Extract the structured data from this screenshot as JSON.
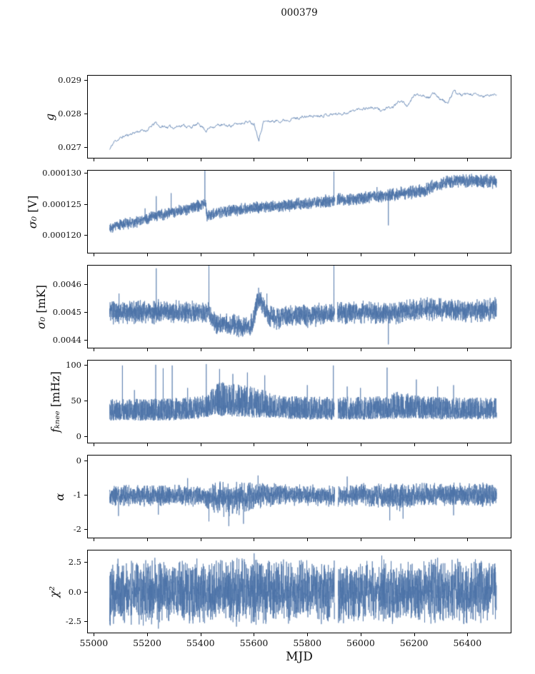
{
  "title": "000379",
  "xlabel": "MJD",
  "accent_color": "#4c73a8",
  "x_tick_labels": [
    "55000",
    "55200",
    "55400",
    "55600",
    "55800",
    "56000",
    "56200",
    "56400"
  ],
  "chart_data": {
    "type": "line",
    "title": "000379",
    "xlabel": "MJD",
    "xlim": [
      54975,
      56565
    ],
    "x_ticks": [
      55000,
      55200,
      55400,
      55600,
      55800,
      56000,
      56200,
      56400
    ],
    "legend": "none",
    "grid": false,
    "panels": [
      {
        "type": "line",
        "ylabel": {
          "sym": "g",
          "unit": ""
        },
        "ylabel_text": "g",
        "ylim": [
          0.02665,
          0.02915
        ],
        "yticks": [
          0.027,
          0.028,
          0.029
        ],
        "ytick_labels": [
          "0.027",
          "0.028",
          "0.029"
        ],
        "x_range": [
          55057,
          56512
        ],
        "sample_step": 1.5,
        "seed": 11,
        "noise": "ar1",
        "line_width": 0.8,
        "noise_amp": [
          [
            55057,
            6e-05
          ],
          [
            56512,
            6e-05
          ]
        ],
        "trend": [
          [
            55057,
            0.0269
          ],
          [
            55075,
            0.02715
          ],
          [
            55110,
            0.0273
          ],
          [
            55160,
            0.02745
          ],
          [
            55200,
            0.0275
          ],
          [
            55230,
            0.02772
          ],
          [
            55245,
            0.0276
          ],
          [
            55300,
            0.02758
          ],
          [
            55330,
            0.02765
          ],
          [
            55360,
            0.02758
          ],
          [
            55395,
            0.02768
          ],
          [
            55420,
            0.02748
          ],
          [
            55440,
            0.0276
          ],
          [
            55470,
            0.02765
          ],
          [
            55500,
            0.02762
          ],
          [
            55540,
            0.02768
          ],
          [
            55570,
            0.02776
          ],
          [
            55600,
            0.0277
          ],
          [
            55618,
            0.02722
          ],
          [
            55635,
            0.02775
          ],
          [
            55700,
            0.02778
          ],
          [
            55750,
            0.02785
          ],
          [
            55800,
            0.0279
          ],
          [
            55850,
            0.02795
          ],
          [
            55900,
            0.02798
          ],
          [
            55950,
            0.02802
          ],
          [
            56000,
            0.02815
          ],
          [
            56040,
            0.02818
          ],
          [
            56080,
            0.0281
          ],
          [
            56120,
            0.02818
          ],
          [
            56150,
            0.0284
          ],
          [
            56180,
            0.02822
          ],
          [
            56200,
            0.02855
          ],
          [
            56230,
            0.02858
          ],
          [
            56260,
            0.0285
          ],
          [
            56280,
            0.02862
          ],
          [
            56300,
            0.02845
          ],
          [
            56330,
            0.0283
          ],
          [
            56350,
            0.02868
          ],
          [
            56380,
            0.02855
          ],
          [
            56420,
            0.02858
          ],
          [
            56460,
            0.02852
          ],
          [
            56512,
            0.02858
          ]
        ],
        "spikes": [],
        "gaps": []
      },
      {
        "type": "line",
        "ylabel": {
          "sym": "σ₀",
          "unit": " [V]"
        },
        "ylabel_text": "σ₀ [V]",
        "ylim": [
          0.000117,
          0.0001305
        ],
        "yticks": [
          0.00012,
          0.000125,
          0.00013
        ],
        "ytick_labels": [
          "0.000120",
          "0.000125",
          "0.000130"
        ],
        "x_range": [
          55057,
          56512
        ],
        "sample_step": 0.4,
        "seed": 22,
        "noise": "sum2",
        "line_width": 0.7,
        "noise_amp": [
          [
            55057,
            7e-07
          ],
          [
            56200,
            8e-07
          ],
          [
            56512,
            9e-07
          ]
        ],
        "trend": [
          [
            55057,
            0.0001213
          ],
          [
            55100,
            0.0001217
          ],
          [
            55150,
            0.000122
          ],
          [
            55200,
            0.0001226
          ],
          [
            55250,
            0.0001233
          ],
          [
            55300,
            0.0001237
          ],
          [
            55350,
            0.0001242
          ],
          [
            55400,
            0.0001248
          ],
          [
            55418,
            0.0001252
          ],
          [
            55422,
            0.000123
          ],
          [
            55460,
            0.0001236
          ],
          [
            55520,
            0.000124
          ],
          [
            55600,
            0.0001244
          ],
          [
            55700,
            0.0001247
          ],
          [
            55800,
            0.0001251
          ],
          [
            55860,
            0.0001254
          ],
          [
            55920,
            0.0001257
          ],
          [
            55980,
            0.0001258
          ],
          [
            56040,
            0.0001262
          ],
          [
            56100,
            0.0001264
          ],
          [
            56160,
            0.0001268
          ],
          [
            56200,
            0.000127
          ],
          [
            56240,
            0.0001272
          ],
          [
            56280,
            0.000128
          ],
          [
            56320,
            0.0001286
          ],
          [
            56360,
            0.0001288
          ],
          [
            56420,
            0.0001289
          ],
          [
            56470,
            0.0001287
          ],
          [
            56512,
            0.0001288
          ]
        ],
        "spikes": [
          [
            55068,
            0.0001203
          ],
          [
            55190,
            0.0001243
          ],
          [
            55232,
            0.0001263
          ],
          [
            55288,
            0.0001268
          ],
          [
            55415,
            0.0001309
          ],
          [
            55900,
            0.0001304
          ],
          [
            56062,
            0.0001278
          ],
          [
            56105,
            0.0001215
          ]
        ],
        "gaps": [
          [
            55904,
            55912
          ]
        ]
      },
      {
        "type": "line",
        "ylabel": {
          "sym": "σ₀",
          "unit": " [mK]"
        },
        "ylabel_text": "σ₀ [mK]",
        "ylim": [
          0.00437,
          0.00467
        ],
        "yticks": [
          0.0044,
          0.0045,
          0.0046
        ],
        "ytick_labels": [
          "0.0044",
          "0.0045",
          "0.0046"
        ],
        "x_range": [
          55057,
          56512
        ],
        "sample_step": 0.4,
        "seed": 33,
        "noise": "sum2",
        "line_width": 0.7,
        "noise_amp": [
          [
            55057,
            3.2e-05
          ],
          [
            55440,
            3e-05
          ],
          [
            56512,
            3.2e-05
          ]
        ],
        "trend": [
          [
            55057,
            0.0045
          ],
          [
            55150,
            0.004498
          ],
          [
            55250,
            0.004502
          ],
          [
            55350,
            0.0045
          ],
          [
            55430,
            0.0045
          ],
          [
            55445,
            0.004462
          ],
          [
            55500,
            0.004452
          ],
          [
            55560,
            0.004448
          ],
          [
            55595,
            0.004455
          ],
          [
            55615,
            0.004548
          ],
          [
            55630,
            0.00453
          ],
          [
            55650,
            0.00449
          ],
          [
            55680,
            0.004478
          ],
          [
            55720,
            0.004488
          ],
          [
            55800,
            0.004488
          ],
          [
            55900,
            0.004495
          ],
          [
            56000,
            0.004498
          ],
          [
            56100,
            0.004495
          ],
          [
            56150,
            0.004502
          ],
          [
            56200,
            0.004505
          ],
          [
            56250,
            0.004512
          ],
          [
            56300,
            0.00451
          ],
          [
            56350,
            0.004508
          ],
          [
            56420,
            0.004505
          ],
          [
            56512,
            0.004508
          ]
        ],
        "spikes": [
          [
            55092,
            0.004568
          ],
          [
            55232,
            0.00466
          ],
          [
            55430,
            0.004685
          ],
          [
            55648,
            0.004568
          ],
          [
            55900,
            0.004688
          ],
          [
            56105,
            0.004382
          ]
        ],
        "gaps": [
          [
            55903,
            55913
          ]
        ]
      },
      {
        "type": "line",
        "ylabel": {
          "sym": "fₖₙₑₑ",
          "unit": " [mHz]"
        },
        "ylabel_text": "f_knee [mHz]",
        "ylim": [
          -10,
          107
        ],
        "yticks": [
          0,
          50,
          100
        ],
        "ytick_labels": [
          "0",
          "50",
          "100"
        ],
        "x_range": [
          55057,
          56512
        ],
        "sample_step": 0.4,
        "seed": 44,
        "noise": "skew",
        "clamp_min": 14,
        "line_width": 0.7,
        "noise_amp": [
          [
            55057,
            11
          ],
          [
            55430,
            12
          ],
          [
            55470,
            18
          ],
          [
            55600,
            16
          ],
          [
            55680,
            12
          ],
          [
            56100,
            12
          ],
          [
            56150,
            15
          ],
          [
            56200,
            12
          ],
          [
            56512,
            11
          ]
        ],
        "trend": [
          [
            55057,
            32
          ],
          [
            55200,
            32
          ],
          [
            55300,
            33
          ],
          [
            55420,
            36
          ],
          [
            55450,
            45
          ],
          [
            55500,
            44
          ],
          [
            55560,
            42
          ],
          [
            55620,
            40
          ],
          [
            55700,
            36
          ],
          [
            55800,
            34
          ],
          [
            55900,
            34
          ],
          [
            56000,
            34
          ],
          [
            56100,
            35
          ],
          [
            56150,
            38
          ],
          [
            56200,
            36
          ],
          [
            56300,
            34
          ],
          [
            56400,
            34
          ],
          [
            56512,
            34
          ]
        ],
        "spikes": [
          [
            55105,
            100
          ],
          [
            55150,
            65
          ],
          [
            55230,
            101
          ],
          [
            55258,
            96
          ],
          [
            55292,
            100
          ],
          [
            55350,
            68
          ],
          [
            55420,
            102
          ],
          [
            55470,
            95
          ],
          [
            55520,
            88
          ],
          [
            55575,
            90
          ],
          [
            55640,
            86
          ],
          [
            55800,
            72
          ],
          [
            55898,
            100
          ],
          [
            55950,
            70
          ],
          [
            56000,
            68
          ],
          [
            56100,
            97
          ],
          [
            56210,
            80
          ],
          [
            56290,
            70
          ],
          [
            56350,
            72
          ]
        ],
        "gaps": [
          [
            55903,
            55916
          ]
        ]
      },
      {
        "type": "line",
        "ylabel": {
          "sym": "α",
          "unit": ""
        },
        "ylabel_text": "α",
        "ylim": [
          -2.26,
          0.17
        ],
        "yticks": [
          -2,
          -1,
          0
        ],
        "ytick_labels": [
          "-2",
          "-1",
          "0"
        ],
        "x_range": [
          55057,
          56512
        ],
        "sample_step": 0.4,
        "seed": 55,
        "noise": "sum2",
        "line_width": 0.7,
        "noise_amp": [
          [
            55057,
            0.22
          ],
          [
            55150,
            0.25
          ],
          [
            55250,
            0.22
          ],
          [
            55420,
            0.25
          ],
          [
            55470,
            0.38
          ],
          [
            55560,
            0.35
          ],
          [
            55650,
            0.25
          ],
          [
            55800,
            0.22
          ],
          [
            56100,
            0.25
          ],
          [
            56160,
            0.3
          ],
          [
            56250,
            0.25
          ],
          [
            56400,
            0.25
          ],
          [
            56512,
            0.28
          ]
        ],
        "trend": [
          [
            55057,
            -1
          ],
          [
            55200,
            -1.02
          ],
          [
            55300,
            -1
          ],
          [
            55420,
            -1.05
          ],
          [
            55450,
            -1.1
          ],
          [
            55520,
            -1.12
          ],
          [
            55560,
            -1.08
          ],
          [
            55620,
            -1
          ],
          [
            55700,
            -0.98
          ],
          [
            55800,
            -1
          ],
          [
            55900,
            -1.02
          ],
          [
            56000,
            -1
          ],
          [
            56100,
            -1.02
          ],
          [
            56150,
            -1.05
          ],
          [
            56200,
            -1
          ],
          [
            56300,
            -0.98
          ],
          [
            56400,
            -1
          ],
          [
            56512,
            -1
          ]
        ],
        "spikes": [
          [
            55090,
            -1.62
          ],
          [
            55240,
            -1.58
          ],
          [
            55350,
            -0.5
          ],
          [
            55430,
            -1.78
          ],
          [
            55505,
            -1.92
          ],
          [
            55560,
            -1.85
          ],
          [
            55615,
            -0.42
          ],
          [
            55950,
            -0.45
          ],
          [
            56110,
            -1.75
          ],
          [
            56160,
            -1.7
          ],
          [
            56350,
            -1.6
          ]
        ],
        "gaps": [
          [
            55903,
            55916
          ]
        ]
      },
      {
        "type": "line",
        "ylabel": {
          "sym": "χ²",
          "unit": ""
        },
        "ylabel_text": "χ²",
        "ylim": [
          -3.54,
          3.54
        ],
        "yticks": [
          -2.5,
          0,
          2.5
        ],
        "ytick_labels": [
          "-2.5",
          "0.0",
          "2.5"
        ],
        "x_range": [
          55057,
          56512
        ],
        "sample_step": 0.4,
        "seed": 66,
        "noise": "sum2",
        "line_width": 0.7,
        "noise_amp": [
          [
            55057,
            2.0
          ],
          [
            55400,
            2.05
          ],
          [
            55600,
            2.05
          ],
          [
            55900,
            1.95
          ],
          [
            56512,
            2.0
          ]
        ],
        "trend": [
          [
            55057,
            0
          ],
          [
            56512,
            0
          ]
        ],
        "spikes": [
          [
            55240,
            -3.2
          ],
          [
            55600,
            3.3
          ],
          [
            56080,
            3.1
          ]
        ],
        "gaps": [
          [
            55903,
            55916
          ]
        ]
      }
    ]
  }
}
